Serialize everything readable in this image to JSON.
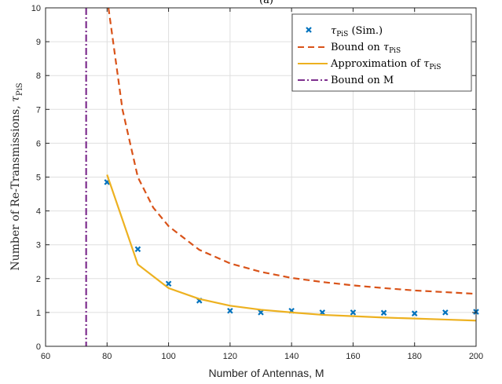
{
  "chart_data": {
    "type": "line",
    "title": "(a)",
    "xlabel": "Number of Antennas, M",
    "ylabel_text": "Number of Re-Transmissions, ",
    "ylabel_symbol": "τ",
    "ylabel_sub": "PiS",
    "xlim": [
      60,
      200
    ],
    "ylim": [
      0,
      10
    ],
    "xticks": [
      60,
      80,
      100,
      120,
      140,
      160,
      180,
      200
    ],
    "yticks": [
      0,
      1,
      2,
      3,
      4,
      5,
      6,
      7,
      8,
      9,
      10
    ],
    "grid": true,
    "legend_position": "top-right",
    "series": [
      {
        "name_symbol": "τ",
        "name_sub": "PiS",
        "name_suffix": " (Sim.)",
        "style": "markers",
        "marker": "x",
        "color": "#0072BD",
        "x": [
          80,
          90,
          100,
          110,
          120,
          130,
          140,
          150,
          160,
          170,
          180,
          190,
          200
        ],
        "y": [
          4.85,
          2.87,
          1.85,
          1.35,
          1.05,
          1.0,
          1.05,
          1.0,
          1.0,
          0.99,
          0.97,
          1.0,
          1.02
        ]
      },
      {
        "name_prefix": "Bound on ",
        "name_symbol": "τ",
        "name_sub": "PiS",
        "style": "dashed",
        "color": "#D95319",
        "x": [
          80,
          85,
          90,
          95,
          100,
          110,
          120,
          130,
          140,
          150,
          160,
          170,
          180,
          190,
          200
        ],
        "y": [
          10.3,
          7.0,
          5.0,
          4.1,
          3.55,
          2.85,
          2.45,
          2.2,
          2.02,
          1.9,
          1.8,
          1.72,
          1.65,
          1.6,
          1.55
        ]
      },
      {
        "name_prefix": "Approximation of ",
        "name_symbol": "τ",
        "name_sub": "PiS",
        "style": "solid",
        "color": "#EDB120",
        "x": [
          80,
          90,
          100,
          110,
          120,
          130,
          140,
          150,
          160,
          170,
          180,
          190,
          200
        ],
        "y": [
          5.07,
          2.42,
          1.72,
          1.4,
          1.2,
          1.08,
          1.0,
          0.93,
          0.89,
          0.85,
          0.82,
          0.79,
          0.76
        ]
      },
      {
        "name_prefix": "Bound on M",
        "style": "dashdot",
        "color": "#7E2F8E",
        "vertical_x": 73.2
      }
    ]
  }
}
